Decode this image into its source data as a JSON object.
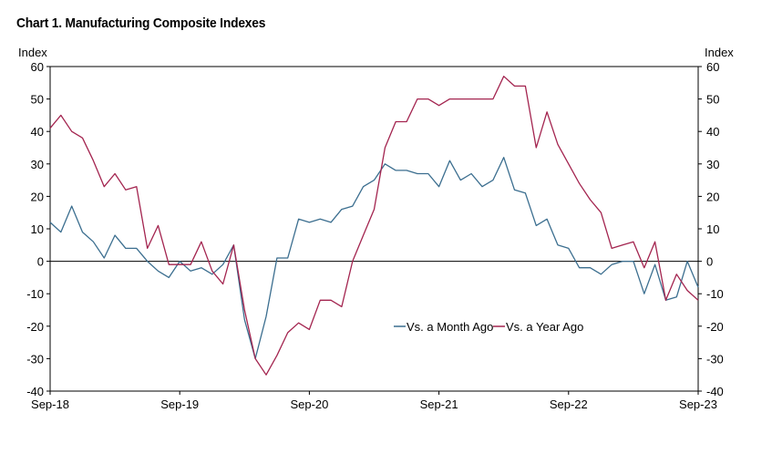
{
  "chart_data": {
    "type": "line",
    "title": "Chart 1. Manufacturing Composite Indexes",
    "y_unit_label_left": "Index",
    "y_unit_label_right": "Index",
    "ylim": [
      -40,
      60
    ],
    "yticks": [
      60,
      50,
      40,
      30,
      20,
      10,
      0,
      -10,
      -20,
      -30,
      -40
    ],
    "x_tick_labels": [
      "Sep-18",
      "Sep-19",
      "Sep-20",
      "Sep-21",
      "Sep-22",
      "Sep-23"
    ],
    "x_start": "Sep-18",
    "x_end": "Sep-23",
    "grid": false,
    "legend_position": "bottom-right",
    "series": [
      {
        "name": "Vs. a Month Ago",
        "color": "#3b6e8f",
        "values": [
          12,
          9,
          17,
          9,
          6,
          1,
          8,
          4,
          4,
          0,
          -3,
          -5,
          0,
          -3,
          -2,
          -4,
          -1,
          5,
          -18,
          -30,
          -17,
          1,
          1,
          13,
          12,
          13,
          12,
          16,
          17,
          23,
          25,
          30,
          28,
          28,
          27,
          27,
          23,
          31,
          25,
          27,
          23,
          25,
          32,
          22,
          21,
          11,
          13,
          5,
          4,
          -2,
          -2,
          -4,
          -1,
          0,
          0,
          -10,
          -1,
          -12,
          -11,
          0,
          -8
        ]
      },
      {
        "name": "Vs. a Year Ago",
        "color": "#a3244f",
        "values": [
          41,
          45,
          40,
          38,
          31,
          23,
          27,
          22,
          23,
          4,
          11,
          -1,
          -1,
          -1,
          6,
          -3,
          -7,
          5,
          -15,
          -30,
          -35,
          -29,
          -22,
          -19,
          -21,
          -12,
          -12,
          -14,
          0,
          8,
          16,
          35,
          43,
          43,
          50,
          50,
          48,
          50,
          50,
          50,
          50,
          50,
          57,
          54,
          54,
          35,
          46,
          36,
          30,
          24,
          19,
          15,
          4,
          5,
          6,
          -2,
          6,
          -12,
          -4,
          -9,
          -12
        ]
      }
    ]
  }
}
